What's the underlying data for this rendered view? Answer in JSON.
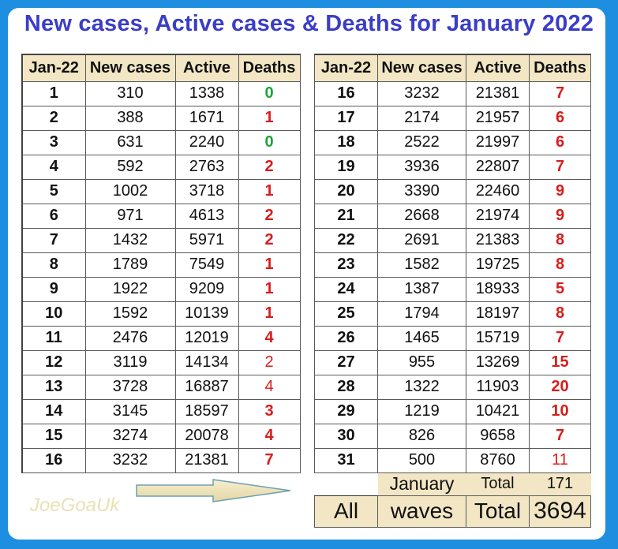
{
  "title": "New cases, Active cases & Deaths for January 2022",
  "headers": [
    "Jan-22",
    "New cases",
    "Active",
    "Deaths"
  ],
  "left_rows": [
    {
      "day": "1",
      "new": "310",
      "active": "1338",
      "deaths": "0",
      "style": "dz"
    },
    {
      "day": "2",
      "new": "388",
      "active": "1671",
      "deaths": "1",
      "style": "dr"
    },
    {
      "day": "3",
      "new": "631",
      "active": "2240",
      "deaths": "0",
      "style": "dz"
    },
    {
      "day": "4",
      "new": "592",
      "active": "2763",
      "deaths": "2",
      "style": "dr"
    },
    {
      "day": "5",
      "new": "1002",
      "active": "3718",
      "deaths": "1",
      "style": "dr"
    },
    {
      "day": "6",
      "new": "971",
      "active": "4613",
      "deaths": "2",
      "style": "dr"
    },
    {
      "day": "7",
      "new": "1432",
      "active": "5971",
      "deaths": "2",
      "style": "dr"
    },
    {
      "day": "8",
      "new": "1789",
      "active": "7549",
      "deaths": "1",
      "style": "dr"
    },
    {
      "day": "9",
      "new": "1922",
      "active": "9209",
      "deaths": "1",
      "style": "dr"
    },
    {
      "day": "10",
      "new": "1592",
      "active": "10139",
      "deaths": "1",
      "style": "dr"
    },
    {
      "day": "11",
      "new": "2476",
      "active": "12019",
      "deaths": "4",
      "style": "dr"
    },
    {
      "day": "12",
      "new": "3119",
      "active": "14134",
      "deaths": "2",
      "style": "dn"
    },
    {
      "day": "13",
      "new": "3728",
      "active": "16887",
      "deaths": "4",
      "style": "dn"
    },
    {
      "day": "14",
      "new": "3145",
      "active": "18597",
      "deaths": "3",
      "style": "dr"
    },
    {
      "day": "15",
      "new": "3274",
      "active": "20078",
      "deaths": "4",
      "style": "dr"
    },
    {
      "day": "16",
      "new": "3232",
      "active": "21381",
      "deaths": "7",
      "style": "dr"
    }
  ],
  "right_rows": [
    {
      "day": "16",
      "new": "3232",
      "active": "21381",
      "deaths": "7",
      "style": "dr"
    },
    {
      "day": "17",
      "new": "2174",
      "active": "21957",
      "deaths": "6",
      "style": "dr"
    },
    {
      "day": "18",
      "new": "2522",
      "active": "21997",
      "deaths": "6",
      "style": "dr"
    },
    {
      "day": "19",
      "new": "3936",
      "active": "22807",
      "deaths": "7",
      "style": "dr"
    },
    {
      "day": "20",
      "new": "3390",
      "active": "22460",
      "deaths": "9",
      "style": "dr"
    },
    {
      "day": "21",
      "new": "2668",
      "active": "21974",
      "deaths": "9",
      "style": "dr"
    },
    {
      "day": "22",
      "new": "2691",
      "active": "21383",
      "deaths": "8",
      "style": "dr"
    },
    {
      "day": "23",
      "new": "1582",
      "active": "19725",
      "deaths": "8",
      "style": "dr"
    },
    {
      "day": "24",
      "new": "1387",
      "active": "18933",
      "deaths": "5",
      "style": "dr"
    },
    {
      "day": "25",
      "new": "1794",
      "active": "18197",
      "deaths": "8",
      "style": "dr"
    },
    {
      "day": "26",
      "new": "1465",
      "active": "15719",
      "deaths": "7",
      "style": "dr"
    },
    {
      "day": "27",
      "new": "955",
      "active": "13269",
      "deaths": "15",
      "style": "dr"
    },
    {
      "day": "28",
      "new": "1322",
      "active": "11903",
      "deaths": "20",
      "style": "dr"
    },
    {
      "day": "29",
      "new": "1219",
      "active": "10421",
      "deaths": "10",
      "style": "dr"
    },
    {
      "day": "30",
      "new": "826",
      "active": "9658",
      "deaths": "7",
      "style": "dr"
    },
    {
      "day": "31",
      "new": "500",
      "active": "8760",
      "deaths": "11",
      "style": "dn"
    }
  ],
  "january_total": {
    "label": "January",
    "total_label": "Total",
    "value": "171"
  },
  "all_waves_total": {
    "all": "All",
    "waves": "waves",
    "total_label": "Total",
    "value": "3694"
  },
  "watermark": "JoeGoaUk",
  "colors": {
    "title": "#3a3ec6",
    "header_bg": "#f2e6c4",
    "zero_deaths": "#1fa33a",
    "deaths": "#d91c1c",
    "background": "#1e8fe0"
  }
}
